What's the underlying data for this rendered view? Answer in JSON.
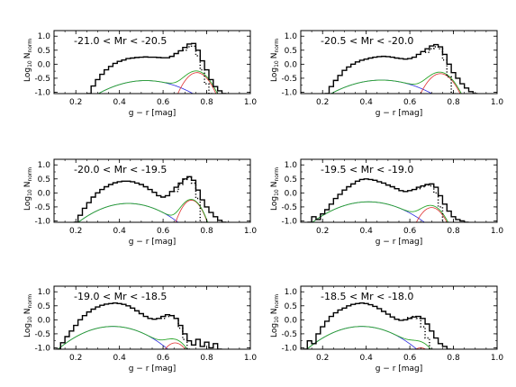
{
  "chart_data": [
    {
      "type": "line",
      "annotation": "-21.0 < Mr < -20.5",
      "xlabel": "g − r [mag]",
      "ylabel_main": "Log",
      "ylabel_sub": "10",
      "ylabel_var": "N",
      "ylabel_var_sub": "norm",
      "xlim": [
        0.1,
        1.0
      ],
      "ylim": [
        -1.05,
        1.2
      ],
      "xticks": [
        "0.2",
        "0.4",
        "0.6",
        "0.8",
        "1.0"
      ],
      "yticks": [
        "-1.0",
        "-0.5",
        "0.0",
        "0.5",
        "1.0"
      ],
      "series": [
        {
          "role": "data-histogram",
          "color": "#000000",
          "x": [
            0.26,
            0.28,
            0.3,
            0.32,
            0.34,
            0.36,
            0.38,
            0.4,
            0.42,
            0.44,
            0.46,
            0.48,
            0.5,
            0.52,
            0.54,
            0.56,
            0.58,
            0.6,
            0.62,
            0.64,
            0.66,
            0.68,
            0.7,
            0.72,
            0.74,
            0.76,
            0.78,
            0.8,
            0.82,
            0.84,
            0.86,
            0.88
          ],
          "y": [
            -1.05,
            -0.78,
            -0.55,
            -0.36,
            -0.2,
            -0.08,
            0.03,
            0.1,
            0.15,
            0.2,
            0.22,
            0.24,
            0.25,
            0.26,
            0.25,
            0.25,
            0.24,
            0.23,
            0.23,
            0.28,
            0.38,
            0.48,
            0.6,
            0.72,
            0.74,
            0.5,
            0.12,
            -0.2,
            -0.55,
            -0.8,
            -0.95,
            -1.05
          ]
        },
        {
          "role": "dotted",
          "color": "#000000",
          "x": [
            0.7,
            0.72,
            0.74,
            0.76,
            0.78,
            0.8,
            0.82
          ],
          "y": [
            0.5,
            0.62,
            0.64,
            0.3,
            -0.2,
            -0.7,
            -1.05
          ]
        },
        {
          "role": "blue-gaussian",
          "color": "#2a2ae0",
          "mu": 0.52,
          "sigma": 0.148,
          "amp": 0.26
        },
        {
          "role": "red-gaussian",
          "color": "#e03030",
          "mu": 0.755,
          "sigma": 0.047,
          "amp": 0.5
        },
        {
          "role": "green-sum",
          "color": "#2aa62a"
        }
      ]
    },
    {
      "type": "line",
      "annotation": "-20.5 < Mr < -20.0",
      "xlabel": "g − r [mag]",
      "ylabel_main": "Log",
      "ylabel_sub": "10",
      "ylabel_var": "N",
      "ylabel_var_sub": "norm",
      "xlim": [
        0.1,
        1.0
      ],
      "ylim": [
        -1.05,
        1.2
      ],
      "xticks": [
        "0.2",
        "0.4",
        "0.6",
        "0.8",
        "1.0"
      ],
      "yticks": [
        "-1.0",
        "-0.5",
        "0.0",
        "0.5",
        "1.0"
      ],
      "series": [
        {
          "role": "data-histogram",
          "color": "#000000",
          "x": [
            0.22,
            0.24,
            0.26,
            0.28,
            0.3,
            0.32,
            0.34,
            0.36,
            0.38,
            0.4,
            0.42,
            0.44,
            0.46,
            0.48,
            0.5,
            0.52,
            0.54,
            0.56,
            0.58,
            0.6,
            0.62,
            0.64,
            0.66,
            0.68,
            0.7,
            0.72,
            0.74,
            0.76,
            0.78,
            0.8,
            0.82,
            0.84,
            0.86,
            0.88,
            0.9
          ],
          "y": [
            -1.05,
            -0.8,
            -0.58,
            -0.4,
            -0.22,
            -0.1,
            0.0,
            0.08,
            0.14,
            0.18,
            0.22,
            0.25,
            0.27,
            0.28,
            0.27,
            0.25,
            0.22,
            0.2,
            0.18,
            0.2,
            0.25,
            0.35,
            0.45,
            0.55,
            0.65,
            0.7,
            0.62,
            0.35,
            0.0,
            -0.3,
            -0.5,
            -0.7,
            -0.85,
            -0.98,
            -1.05
          ]
        },
        {
          "role": "dotted",
          "color": "#000000",
          "x": [
            0.68,
            0.7,
            0.72,
            0.74,
            0.76,
            0.78,
            0.8
          ],
          "y": [
            0.42,
            0.55,
            0.62,
            0.55,
            0.15,
            -0.45,
            -1.05
          ]
        },
        {
          "role": "blue-gaussian",
          "color": "#2a2ae0",
          "mu": 0.47,
          "sigma": 0.155,
          "amp": 0.27
        },
        {
          "role": "red-gaussian",
          "color": "#e03030",
          "mu": 0.74,
          "sigma": 0.05,
          "amp": 0.46
        },
        {
          "role": "green-sum",
          "color": "#2aa62a"
        }
      ]
    },
    {
      "type": "line",
      "annotation": "-20.0 < Mr < -19.5",
      "xlabel": "g − r [mag]",
      "ylabel_main": "Log",
      "ylabel_sub": "10",
      "ylabel_var": "N",
      "ylabel_var_sub": "norm",
      "xlim": [
        0.1,
        1.0
      ],
      "ylim": [
        -1.05,
        1.2
      ],
      "xticks": [
        "0.2",
        "0.4",
        "0.6",
        "0.8",
        "1.0"
      ],
      "yticks": [
        "-1.0",
        "-0.5",
        "0.0",
        "0.5",
        "1.0"
      ],
      "series": [
        {
          "role": "data-histogram",
          "color": "#000000",
          "x": [
            0.2,
            0.22,
            0.24,
            0.26,
            0.28,
            0.3,
            0.32,
            0.34,
            0.36,
            0.38,
            0.4,
            0.42,
            0.44,
            0.46,
            0.48,
            0.5,
            0.52,
            0.54,
            0.56,
            0.58,
            0.6,
            0.62,
            0.64,
            0.66,
            0.68,
            0.7,
            0.72,
            0.74,
            0.76,
            0.78,
            0.8,
            0.82,
            0.84,
            0.86,
            0.88
          ],
          "y": [
            -1.05,
            -0.8,
            -0.55,
            -0.35,
            -0.15,
            0.0,
            0.12,
            0.22,
            0.3,
            0.36,
            0.4,
            0.42,
            0.42,
            0.4,
            0.35,
            0.3,
            0.22,
            0.12,
            0.02,
            -0.1,
            -0.15,
            -0.1,
            0.05,
            0.2,
            0.35,
            0.5,
            0.58,
            0.45,
            0.1,
            -0.25,
            -0.5,
            -0.7,
            -0.85,
            -0.98,
            -1.05
          ]
        },
        {
          "role": "dotted",
          "color": "#000000",
          "x": [
            0.66,
            0.68,
            0.7,
            0.72,
            0.74,
            0.76,
            0.78
          ],
          "y": [
            0.05,
            0.3,
            0.48,
            0.55,
            0.35,
            -0.2,
            -1.05
          ]
        },
        {
          "role": "blue-gaussian",
          "color": "#2a2ae0",
          "mu": 0.44,
          "sigma": 0.13,
          "amp": 0.42
        },
        {
          "role": "red-gaussian",
          "color": "#e03030",
          "mu": 0.73,
          "sigma": 0.038,
          "amp": 0.55
        },
        {
          "role": "green-sum",
          "color": "#2aa62a"
        }
      ]
    },
    {
      "type": "line",
      "annotation": "-19.5 < Mr < -19.0",
      "xlabel": "g − r [mag]",
      "ylabel_main": "Log",
      "ylabel_sub": "10",
      "ylabel_var": "N",
      "ylabel_var_sub": "norm",
      "xlim": [
        0.1,
        1.0
      ],
      "ylim": [
        -1.05,
        1.2
      ],
      "xticks": [
        "0.2",
        "0.4",
        "0.6",
        "0.8",
        "1.0"
      ],
      "yticks": [
        "-1.0",
        "-0.5",
        "0.0",
        "0.5",
        "1.0"
      ],
      "series": [
        {
          "role": "data-histogram",
          "color": "#000000",
          "x": [
            0.14,
            0.16,
            0.18,
            0.2,
            0.22,
            0.24,
            0.26,
            0.28,
            0.3,
            0.32,
            0.34,
            0.36,
            0.38,
            0.4,
            0.42,
            0.44,
            0.46,
            0.48,
            0.5,
            0.52,
            0.54,
            0.56,
            0.58,
            0.6,
            0.62,
            0.64,
            0.66,
            0.68,
            0.7,
            0.72,
            0.74,
            0.76,
            0.78,
            0.8,
            0.82,
            0.84,
            0.86
          ],
          "y": [
            -1.05,
            -0.85,
            -0.95,
            -0.75,
            -0.6,
            -0.4,
            -0.2,
            -0.05,
            0.1,
            0.22,
            0.32,
            0.42,
            0.48,
            0.5,
            0.48,
            0.45,
            0.4,
            0.35,
            0.28,
            0.22,
            0.15,
            0.08,
            0.05,
            0.08,
            0.12,
            0.2,
            0.25,
            0.3,
            0.32,
            0.2,
            -0.1,
            -0.4,
            -0.65,
            -0.85,
            -0.95,
            -1.0,
            -1.05
          ]
        },
        {
          "role": "dotted",
          "color": "#000000",
          "x": [
            0.64,
            0.66,
            0.68,
            0.7,
            0.72,
            0.74,
            0.76
          ],
          "y": [
            0.15,
            0.22,
            0.28,
            0.25,
            0.0,
            -0.5,
            -1.05
          ]
        },
        {
          "role": "blue-gaussian",
          "color": "#2a2ae0",
          "mu": 0.41,
          "sigma": 0.14,
          "amp": 0.48
        },
        {
          "role": "red-gaussian",
          "color": "#e03030",
          "mu": 0.7,
          "sigma": 0.045,
          "amp": 0.3
        },
        {
          "role": "green-sum",
          "color": "#2aa62a"
        }
      ]
    },
    {
      "type": "line",
      "annotation": "-19.0 < Mr < -18.5",
      "xlabel": "g − r [mag]",
      "ylabel_main": "Log",
      "ylabel_sub": "10",
      "ylabel_var": "N",
      "ylabel_var_sub": "norm",
      "xlim": [
        0.1,
        1.0
      ],
      "ylim": [
        -1.05,
        1.2
      ],
      "xticks": [
        "0.2",
        "0.4",
        "0.6",
        "0.8",
        "1.0"
      ],
      "yticks": [
        "-1.0",
        "-0.5",
        "0.0",
        "0.5",
        "1.0"
      ],
      "series": [
        {
          "role": "data-histogram",
          "color": "#000000",
          "x": [
            0.12,
            0.14,
            0.16,
            0.18,
            0.2,
            0.22,
            0.24,
            0.26,
            0.28,
            0.3,
            0.32,
            0.34,
            0.36,
            0.38,
            0.4,
            0.42,
            0.44,
            0.46,
            0.48,
            0.5,
            0.52,
            0.54,
            0.56,
            0.58,
            0.6,
            0.62,
            0.64,
            0.66,
            0.68,
            0.7,
            0.72,
            0.74,
            0.76,
            0.78,
            0.8,
            0.82,
            0.84,
            0.86
          ],
          "y": [
            -1.05,
            -0.82,
            -0.6,
            -0.4,
            -0.2,
            0.0,
            0.15,
            0.28,
            0.38,
            0.46,
            0.52,
            0.56,
            0.58,
            0.6,
            0.58,
            0.55,
            0.5,
            0.42,
            0.32,
            0.22,
            0.12,
            0.05,
            0.02,
            0.05,
            0.12,
            0.18,
            0.15,
            0.05,
            -0.2,
            -0.5,
            -0.75,
            -0.9,
            -0.7,
            -0.95,
            -0.8,
            -1.0,
            -0.85,
            -1.05
          ]
        },
        {
          "role": "dotted",
          "color": "#000000",
          "x": [
            0.6,
            0.62,
            0.64,
            0.66,
            0.68,
            0.7,
            0.72
          ],
          "y": [
            0.05,
            0.12,
            0.15,
            0.05,
            -0.3,
            -0.7,
            -1.05
          ]
        },
        {
          "role": "blue-gaussian",
          "color": "#2a2ae0",
          "mu": 0.37,
          "sigma": 0.13,
          "amp": 0.58
        },
        {
          "role": "red-gaussian",
          "color": "#e03030",
          "mu": 0.655,
          "sigma": 0.045,
          "amp": 0.15
        },
        {
          "role": "green-sum",
          "color": "#2aa62a"
        }
      ]
    },
    {
      "type": "line",
      "annotation": "-18.5 < Mr < -18.0",
      "xlabel": "g − r [mag]",
      "ylabel_main": "Log",
      "ylabel_sub": "10",
      "ylabel_var": "N",
      "ylabel_var_sub": "norm",
      "xlim": [
        0.1,
        1.0
      ],
      "ylim": [
        -1.05,
        1.2
      ],
      "xticks": [
        "0.2",
        "0.4",
        "0.6",
        "0.8",
        "1.0"
      ],
      "yticks": [
        "-1.0",
        "-0.5",
        "0.0",
        "0.5",
        "1.0"
      ],
      "series": [
        {
          "role": "data-histogram",
          "color": "#000000",
          "x": [
            0.12,
            0.14,
            0.16,
            0.18,
            0.2,
            0.22,
            0.24,
            0.26,
            0.28,
            0.3,
            0.32,
            0.34,
            0.36,
            0.38,
            0.4,
            0.42,
            0.44,
            0.46,
            0.48,
            0.5,
            0.52,
            0.54,
            0.56,
            0.58,
            0.6,
            0.62,
            0.64,
            0.66,
            0.68,
            0.7,
            0.72,
            0.74,
            0.76,
            0.78
          ],
          "y": [
            -1.05,
            -0.75,
            -0.85,
            -0.5,
            -0.25,
            -0.05,
            0.12,
            0.25,
            0.35,
            0.42,
            0.5,
            0.55,
            0.58,
            0.6,
            0.58,
            0.54,
            0.48,
            0.4,
            0.3,
            0.2,
            0.1,
            0.02,
            -0.02,
            0.0,
            0.05,
            0.1,
            0.12,
            0.05,
            -0.15,
            -0.4,
            -0.65,
            -0.85,
            -0.95,
            -1.05
          ]
        },
        {
          "role": "dotted",
          "color": "#000000",
          "x": [
            0.58,
            0.6,
            0.62,
            0.64,
            0.66,
            0.68,
            0.7
          ],
          "y": [
            0.0,
            0.08,
            0.12,
            0.05,
            -0.25,
            -0.65,
            -1.05
          ]
        },
        {
          "role": "blue-gaussian",
          "color": "#2a2ae0",
          "mu": 0.38,
          "sigma": 0.13,
          "amp": 0.58
        },
        {
          "role": "red-gaussian",
          "color": "#e03030",
          "mu": 0.65,
          "sigma": 0.045,
          "amp": 0.1
        },
        {
          "role": "green-sum",
          "color": "#2aa62a"
        }
      ]
    }
  ]
}
